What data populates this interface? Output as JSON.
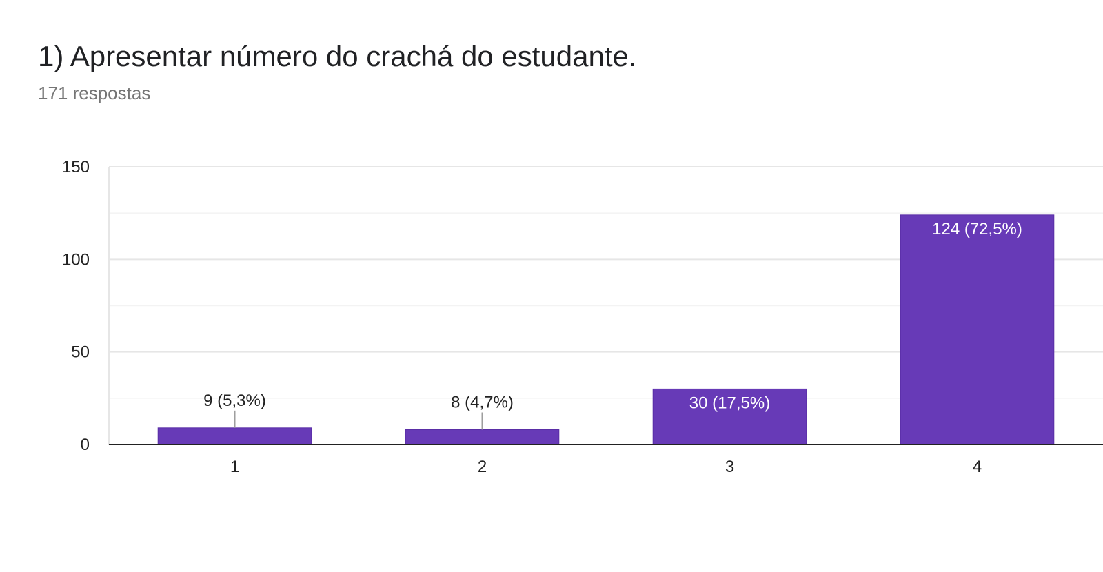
{
  "header": {
    "title": "1) Apresentar número do crachá do estudante.",
    "subtitle": "171 respostas"
  },
  "chart_data": {
    "type": "bar",
    "categories": [
      "1",
      "2",
      "3",
      "4"
    ],
    "values": [
      9,
      8,
      30,
      124
    ],
    "data_labels": [
      "9 (5,3%)",
      "8 (4,7%)",
      "30 (17,5%)",
      "124 (72,5%)"
    ],
    "ylim": [
      0,
      150
    ],
    "yticks": [
      0,
      50,
      100,
      150
    ],
    "grid": true,
    "bar_color": "#673ab7",
    "title": "1) Apresentar número do crachá do estudante.",
    "xlabel": "",
    "ylabel": ""
  }
}
